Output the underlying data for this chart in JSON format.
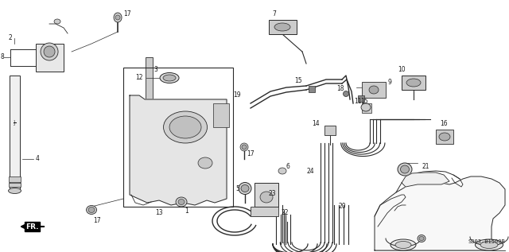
{
  "bg_color": "#ffffff",
  "diagram_code": "S303-B1500B",
  "fig_width": 6.4,
  "fig_height": 3.17,
  "dpi": 100,
  "lc": "#2a2a2a",
  "tc": "#1a1a1a",
  "fs": 5.5
}
